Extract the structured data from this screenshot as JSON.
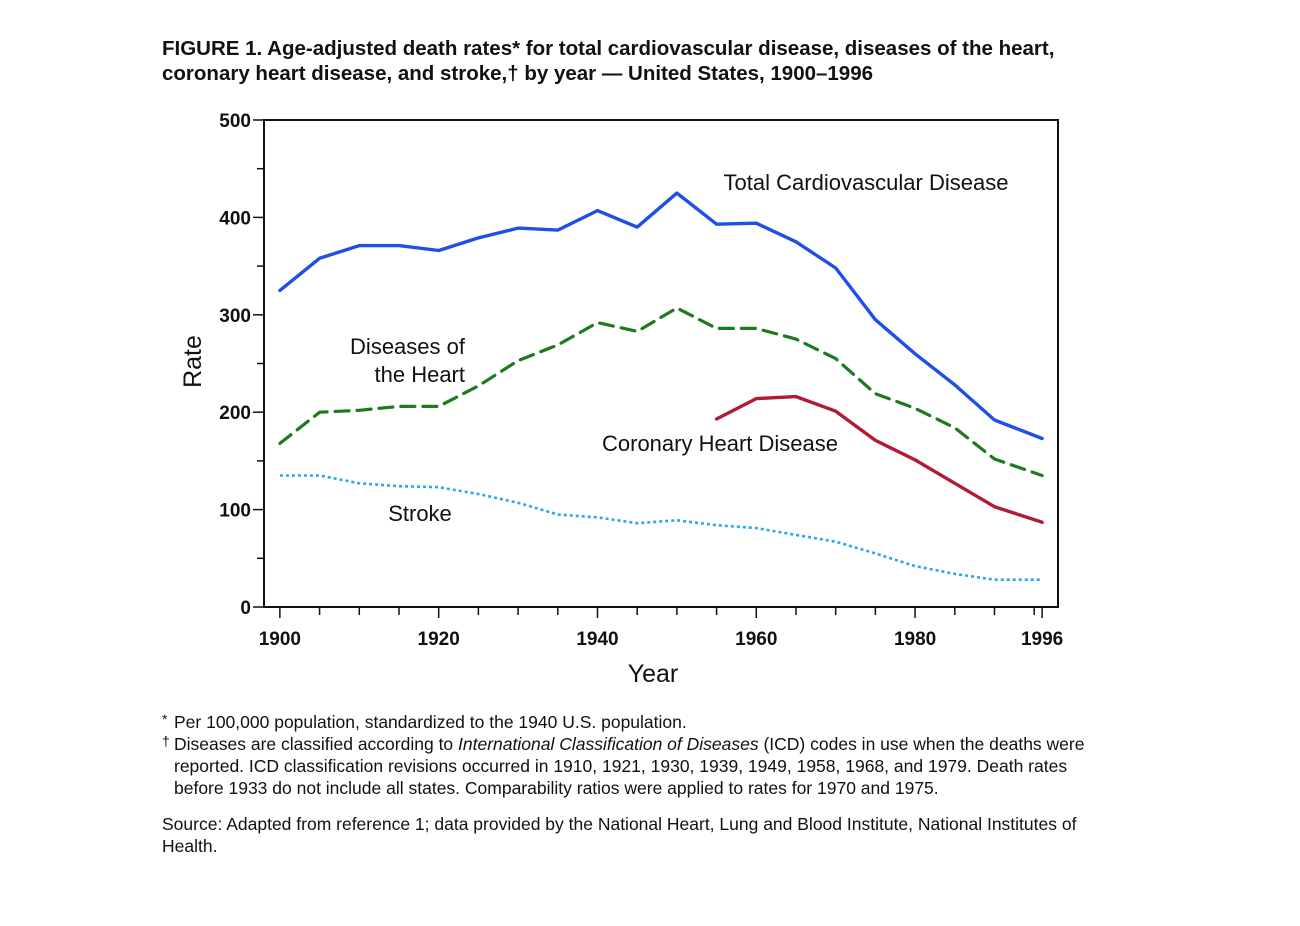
{
  "figure": {
    "title": "FIGURE 1. Age-adjusted death rates* for total cardiovascular disease, diseases of the heart, coronary heart disease, and stroke,† by year — United States, 1900–1996",
    "footnote_1_mark": "*",
    "footnote_1": "Per 100,000 population, standardized to the 1940 U.S. population.",
    "footnote_2_mark": "†",
    "footnote_2_pre": "Diseases are classified according to ",
    "footnote_2_italic": "International Classification of Diseases",
    "footnote_2_post": " (ICD) codes in use when the deaths were reported. ICD classification revisions occurred in 1910, 1921, 1930, 1939, 1949, 1958, 1968, and 1979. Death rates before 1933 do not include all states. Comparability ratios were applied to rates for 1970 and 1975.",
    "source": "Source: Adapted from reference 1; data provided by the National Heart, Lung and Blood Institute, National Institutes of Health."
  },
  "chart_data": {
    "type": "line",
    "xlabel": "Year",
    "ylabel": "Rate",
    "xlim": [
      1898,
      1998
    ],
    "ylim": [
      0,
      500
    ],
    "x_ticks": [
      1900,
      1920,
      1940,
      1960,
      1980,
      1996
    ],
    "y_ticks": [
      0,
      100,
      200,
      300,
      400,
      500
    ],
    "grid": false,
    "series": [
      {
        "name": "Total Cardiovascular Disease",
        "label_lines": [
          "Total Cardiovascular Disease"
        ],
        "color": "#1f4fe6",
        "style": "solid",
        "x": [
          1900,
          1905,
          1910,
          1915,
          1920,
          1925,
          1930,
          1935,
          1940,
          1945,
          1950,
          1955,
          1960,
          1965,
          1970,
          1975,
          1980,
          1985,
          1990,
          1996
        ],
        "y": [
          325,
          358,
          371,
          371,
          366,
          379,
          389,
          387,
          407,
          390,
          425,
          393,
          394,
          375,
          348,
          295,
          260,
          228,
          192,
          173
        ]
      },
      {
        "name": "Diseases of the Heart",
        "label_lines": [
          "Diseases of",
          "the Heart"
        ],
        "color": "#1e7a1e",
        "style": "dashed",
        "x": [
          1900,
          1905,
          1910,
          1915,
          1920,
          1925,
          1930,
          1935,
          1940,
          1945,
          1950,
          1955,
          1960,
          1965,
          1970,
          1975,
          1980,
          1985,
          1990,
          1996
        ],
        "y": [
          168,
          200,
          202,
          206,
          206,
          227,
          253,
          269,
          292,
          283,
          307,
          286,
          286,
          275,
          255,
          219,
          204,
          184,
          152,
          135
        ]
      },
      {
        "name": "Coronary Heart Disease",
        "label_lines": [
          "Coronary Heart Disease"
        ],
        "color": "#b01c35",
        "style": "solid",
        "x": [
          1955,
          1960,
          1965,
          1970,
          1975,
          1980,
          1985,
          1990,
          1996
        ],
        "y": [
          193,
          214,
          216,
          201,
          171,
          151,
          127,
          103,
          87
        ]
      },
      {
        "name": "Stroke",
        "label_lines": [
          "Stroke"
        ],
        "color": "#2aa7ec",
        "style": "dotted",
        "x": [
          1900,
          1905,
          1910,
          1915,
          1920,
          1925,
          1930,
          1935,
          1940,
          1945,
          1950,
          1955,
          1960,
          1965,
          1970,
          1975,
          1980,
          1985,
          1990,
          1996
        ],
        "y": [
          135,
          135,
          127,
          124,
          123,
          116,
          107,
          95,
          92,
          86,
          89,
          84,
          81,
          74,
          67,
          55,
          42,
          34,
          28,
          28
        ]
      }
    ]
  }
}
